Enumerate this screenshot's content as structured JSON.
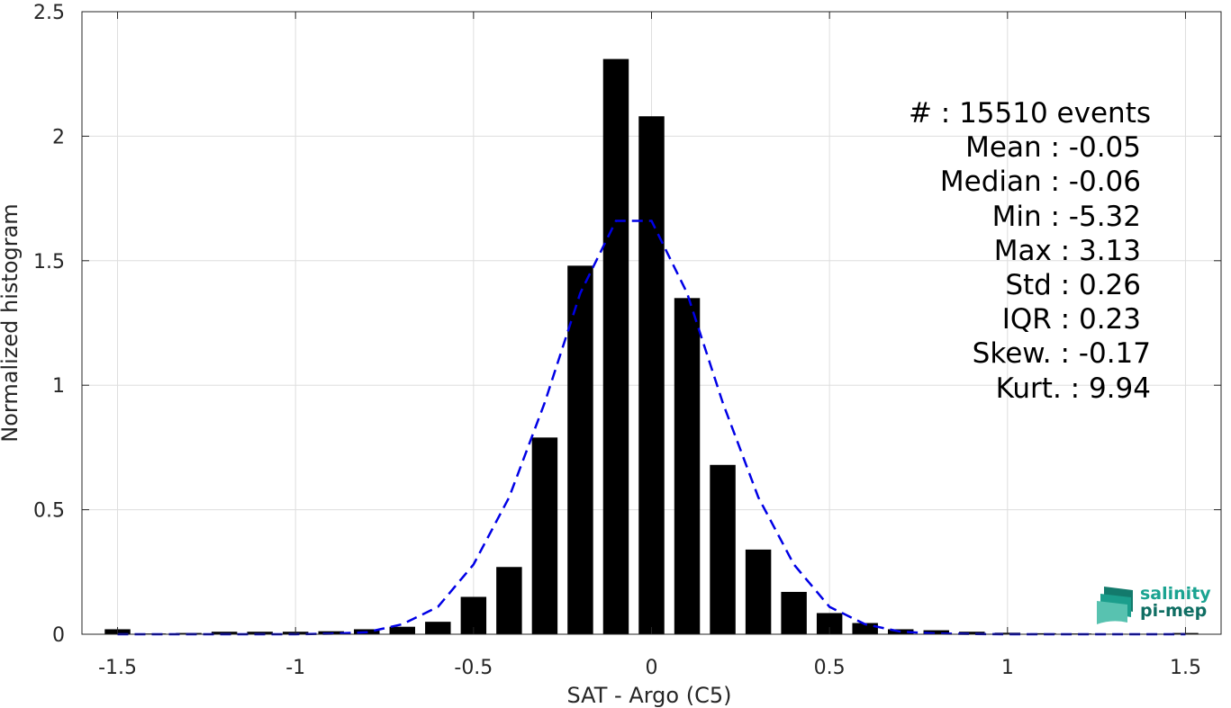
{
  "chart_data": {
    "type": "bar",
    "xlabel": "SAT - Argo (C5)",
    "ylabel": "Normalized histogram",
    "xlim": [
      -1.6,
      1.6
    ],
    "ylim": [
      0,
      2.5
    ],
    "x_ticks": [
      -1.5,
      -1,
      -0.5,
      0,
      0.5,
      1,
      1.5
    ],
    "x_tick_labels": [
      "-1.5",
      "-1",
      "-0.5",
      "0",
      "0.5",
      "1",
      "1.5"
    ],
    "y_ticks": [
      0,
      0.5,
      1,
      1.5,
      2,
      2.5
    ],
    "y_tick_labels": [
      "0",
      "0.5",
      "1",
      "1.5",
      "2",
      "2.5"
    ],
    "grid": true,
    "series": [
      {
        "type": "bar",
        "color": "#000000",
        "x": [
          -1.5,
          -1.4,
          -1.3,
          -1.2,
          -1.1,
          -1.0,
          -0.9,
          -0.8,
          -0.7,
          -0.6,
          -0.5,
          -0.4,
          -0.3,
          -0.2,
          -0.1,
          0.0,
          0.1,
          0.2,
          0.3,
          0.4,
          0.5,
          0.6,
          0.7,
          0.8,
          0.9,
          1.0,
          1.1,
          1.2,
          1.3,
          1.4,
          1.5
        ],
        "values": [
          0.02,
          0.003,
          0.005,
          0.01,
          0.01,
          0.01,
          0.012,
          0.02,
          0.03,
          0.05,
          0.15,
          0.27,
          0.79,
          1.48,
          2.31,
          2.08,
          1.35,
          0.68,
          0.34,
          0.17,
          0.085,
          0.045,
          0.02,
          0.016,
          0.01,
          0.006,
          0.004,
          0.003,
          0.002,
          0.002,
          0.005
        ]
      },
      {
        "type": "line",
        "style": "dashed",
        "color": "#0000e6",
        "x": [
          -1.5,
          -1.4,
          -1.3,
          -1.2,
          -1.1,
          -1.0,
          -0.9,
          -0.8,
          -0.7,
          -0.6,
          -0.5,
          -0.4,
          -0.3,
          -0.2,
          -0.1,
          0.0,
          0.1,
          0.2,
          0.3,
          0.4,
          0.5,
          0.6,
          0.7,
          0.8,
          0.9,
          1.0,
          1.1,
          1.2,
          1.3,
          1.4,
          1.5
        ],
        "values": [
          0.0,
          0.0,
          0.0,
          0.0,
          0.0,
          0.0,
          0.002,
          0.008,
          0.04,
          0.11,
          0.28,
          0.55,
          0.93,
          1.37,
          1.66,
          1.66,
          1.37,
          0.93,
          0.55,
          0.28,
          0.11,
          0.04,
          0.01,
          0.003,
          0.001,
          0.0,
          0.0,
          0.0,
          0.0,
          0.0,
          0.0
        ]
      }
    ]
  },
  "stats": [
    "#  : 15510 events",
    "Mean : -0.05",
    "Median : -0.06",
    "Min : -5.32",
    "Max : 3.13",
    "Std : 0.26",
    "IQR : 0.23",
    "Skew. : -0.17",
    "Kurt. : 9.94"
  ],
  "logo": {
    "line1": "salinity",
    "line2": "pi-mep",
    "colors": {
      "line1": "#1aa391",
      "line2": "#0f6e63"
    }
  }
}
